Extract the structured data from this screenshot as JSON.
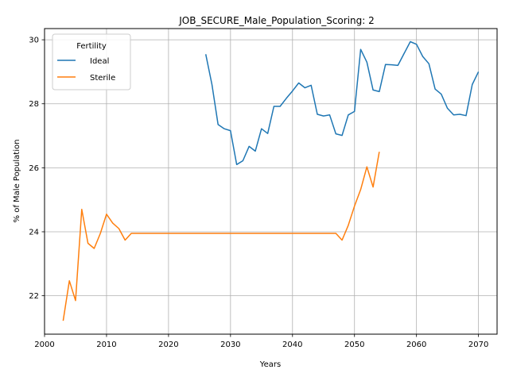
{
  "chart_data": {
    "type": "line",
    "title": "JOB_SECURE_Male_Population_Scoring: 2",
    "xlabel": "Years",
    "ylabel": "% of Male Population",
    "xlim": [
      2000,
      2073
    ],
    "ylim": [
      20.8,
      30.35
    ],
    "xticks": [
      2000,
      2010,
      2020,
      2030,
      2040,
      2050,
      2060,
      2070
    ],
    "yticks": [
      22,
      24,
      26,
      28,
      30
    ],
    "grid": true,
    "legend": {
      "title": "Fertility",
      "position": "top-left"
    },
    "series": [
      {
        "name": "Ideal",
        "color": "#1f77b4",
        "x": [
          2026,
          2027,
          2028,
          2029,
          2030,
          2031,
          2032,
          2033,
          2034,
          2035,
          2036,
          2037,
          2038,
          2039,
          2040,
          2041,
          2042,
          2043,
          2044,
          2045,
          2046,
          2047,
          2048,
          2049,
          2050,
          2051,
          2052,
          2053,
          2054,
          2055,
          2056,
          2057,
          2058,
          2059,
          2060,
          2061,
          2062,
          2063,
          2064,
          2065,
          2066,
          2067,
          2068,
          2069,
          2070
        ],
        "values": [
          29.55,
          28.6,
          27.35,
          27.22,
          27.16,
          26.1,
          26.22,
          26.67,
          26.52,
          27.22,
          27.07,
          27.92,
          27.92,
          28.17,
          28.4,
          28.65,
          28.5,
          28.58,
          27.67,
          27.62,
          27.65,
          27.06,
          27.01,
          27.65,
          27.76,
          29.7,
          29.3,
          28.43,
          28.38,
          29.23,
          29.22,
          29.2,
          29.57,
          29.94,
          29.86,
          29.48,
          29.25,
          28.46,
          28.3,
          27.86,
          27.65,
          27.67,
          27.63,
          28.6,
          29.0
        ]
      },
      {
        "name": "Sterile",
        "color": "#ff7f0e",
        "x": [
          2003,
          2004,
          2005,
          2006,
          2007,
          2008,
          2009,
          2010,
          2011,
          2012,
          2013,
          2014,
          2015,
          2016,
          2017,
          2018,
          2019,
          2020,
          2021,
          2022,
          2023,
          2024,
          2025,
          2026,
          2027,
          2028,
          2029,
          2030,
          2031,
          2032,
          2033,
          2034,
          2035,
          2036,
          2037,
          2038,
          2039,
          2040,
          2041,
          2042,
          2043,
          2044,
          2045,
          2046,
          2047,
          2048,
          2049,
          2050,
          2051,
          2052,
          2053,
          2054
        ],
        "values": [
          21.22,
          22.47,
          21.85,
          24.7,
          23.64,
          23.48,
          23.95,
          24.55,
          24.27,
          24.1,
          23.74,
          23.95,
          23.95,
          23.95,
          23.95,
          23.95,
          23.95,
          23.95,
          23.95,
          23.95,
          23.95,
          23.95,
          23.95,
          23.95,
          23.95,
          23.95,
          23.95,
          23.95,
          23.95,
          23.95,
          23.95,
          23.95,
          23.95,
          23.95,
          23.95,
          23.95,
          23.95,
          23.95,
          23.95,
          23.95,
          23.95,
          23.95,
          23.95,
          23.95,
          23.95,
          23.74,
          24.2,
          24.8,
          25.32,
          26.03,
          25.4,
          26.5
        ]
      }
    ]
  }
}
